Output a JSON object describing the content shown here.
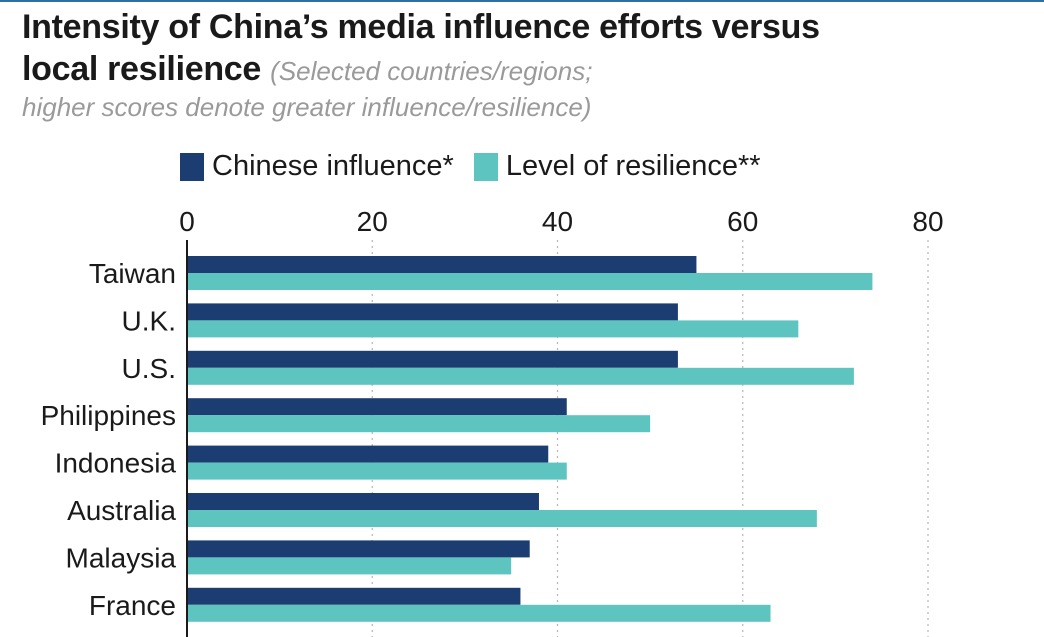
{
  "header": {
    "title_line1": "Intensity of China’s media influence efforts versus",
    "title_line2": "local resilience",
    "subtitle_line1": "(Selected countries/regions;",
    "subtitle_line2": "higher scores denote greater influence/resilience)"
  },
  "colors": {
    "influence": "#1b3d72",
    "resilience": "#5ec4c0",
    "grid": "#b5b5b5",
    "axis": "#1a1a1a"
  },
  "chart_data": {
    "type": "bar",
    "orientation": "horizontal",
    "categories": [
      "Taiwan",
      "U.K.",
      "U.S.",
      "Philippines",
      "Indonesia",
      "Australia",
      "Malaysia",
      "France"
    ],
    "series": [
      {
        "name": "Chinese influence*",
        "values": [
          55,
          53,
          53,
          41,
          39,
          38,
          37,
          36
        ]
      },
      {
        "name": "Level of resilience**",
        "values": [
          74,
          66,
          72,
          50,
          41,
          68,
          35,
          63
        ]
      }
    ],
    "xticks": [
      "0",
      "20",
      "40",
      "60",
      "80"
    ],
    "xlim": [
      0,
      80
    ],
    "legend_position": "top",
    "grid": true
  }
}
